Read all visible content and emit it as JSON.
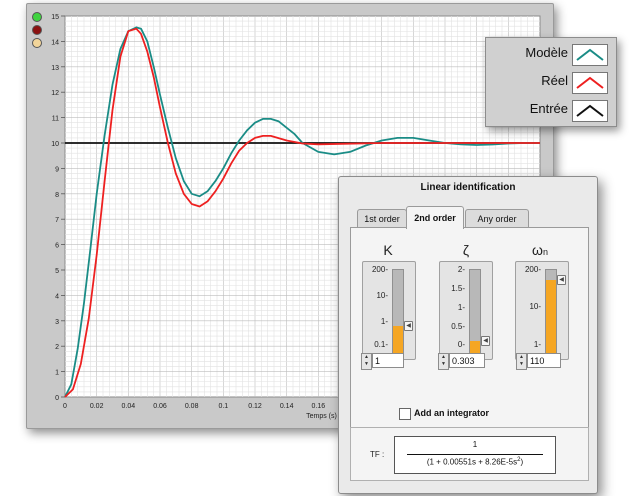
{
  "chart_data": {
    "type": "line",
    "xlabel": "Temps (s)",
    "xlim": [
      0,
      0.3
    ],
    "ylim": [
      0,
      15
    ],
    "x_ticks": [
      "0",
      "0.02",
      "0.04",
      "0.06",
      "0.08",
      "0.1",
      "0.12",
      "0.14",
      "0.16"
    ],
    "y_ticks": [
      "0",
      "1",
      "2",
      "3",
      "4",
      "5",
      "6",
      "7",
      "8",
      "9",
      "10",
      "11",
      "12",
      "13",
      "14",
      "15"
    ],
    "grid": true,
    "legend_position": "top-right",
    "series": [
      {
        "name": "Modèle",
        "color": "#1a8c86",
        "x": [
          0,
          0.004,
          0.008,
          0.012,
          0.016,
          0.02,
          0.025,
          0.03,
          0.035,
          0.04,
          0.045,
          0.048,
          0.052,
          0.056,
          0.06,
          0.065,
          0.07,
          0.075,
          0.08,
          0.085,
          0.09,
          0.095,
          0.1,
          0.105,
          0.11,
          0.115,
          0.12,
          0.125,
          0.13,
          0.135,
          0.14,
          0.145,
          0.15,
          0.16,
          0.17,
          0.18,
          0.19,
          0.2,
          0.21,
          0.22,
          0.23,
          0.24,
          0.25,
          0.26,
          0.27,
          0.28,
          0.29,
          0.3
        ],
        "y": [
          0,
          0.5,
          1.9,
          3.7,
          5.8,
          8.0,
          10.3,
          12.3,
          13.7,
          14.4,
          14.55,
          14.5,
          14.0,
          13.0,
          11.9,
          10.6,
          9.4,
          8.5,
          8.0,
          7.9,
          8.1,
          8.5,
          9.0,
          9.6,
          10.1,
          10.5,
          10.8,
          10.95,
          10.95,
          10.85,
          10.6,
          10.35,
          10.0,
          9.65,
          9.55,
          9.65,
          9.9,
          10.1,
          10.2,
          10.2,
          10.1,
          10.0,
          9.95,
          9.92,
          9.94,
          9.98,
          10.0,
          10.0
        ]
      },
      {
        "name": "Réel",
        "color": "#ee2020",
        "x": [
          0,
          0.005,
          0.01,
          0.015,
          0.02,
          0.025,
          0.03,
          0.035,
          0.04,
          0.045,
          0.048,
          0.052,
          0.056,
          0.06,
          0.065,
          0.07,
          0.075,
          0.08,
          0.085,
          0.09,
          0.095,
          0.1,
          0.105,
          0.11,
          0.115,
          0.12,
          0.125,
          0.13,
          0.14,
          0.15,
          0.16,
          0.2,
          0.25,
          0.3
        ],
        "y": [
          0,
          0.3,
          1.3,
          3.1,
          5.6,
          8.5,
          11.3,
          13.4,
          14.4,
          14.5,
          14.3,
          13.6,
          12.6,
          11.4,
          10.0,
          8.8,
          8.0,
          7.6,
          7.5,
          7.7,
          8.1,
          8.6,
          9.2,
          9.7,
          10.0,
          10.2,
          10.28,
          10.28,
          10.1,
          9.98,
          9.95,
          10.0,
          10.0,
          10.0
        ]
      },
      {
        "name": "Entrée",
        "color": "#111111",
        "x": [
          0,
          0.3
        ],
        "y": [
          10,
          10
        ]
      }
    ]
  },
  "legend": {
    "items": [
      {
        "label": "Modèle",
        "color": "#1a8c86"
      },
      {
        "label": "Réel",
        "color": "#ee2020"
      },
      {
        "label": "Entrée",
        "color": "#111111"
      }
    ]
  },
  "panel": {
    "title": "Linear identification",
    "tabs": [
      "1st order",
      "2nd order",
      "Any order"
    ],
    "active_tab": "2nd order",
    "accent_color": "#f5a623",
    "params": [
      {
        "symbol": "K",
        "ticks": [
          "200-",
          "10-",
          "1-",
          "0.1-"
        ],
        "value": "1",
        "level": 0.33
      },
      {
        "symbol": "ζ",
        "ticks": [
          "2-",
          "1.5-",
          "1-",
          "0.5-",
          "0-"
        ],
        "value": "0.303",
        "level": 0.15
      },
      {
        "symbol": "ω",
        "symbol_sub": "n",
        "ticks": [
          "200-",
          "10-",
          "1-"
        ],
        "value": "110",
        "level": 0.88
      }
    ],
    "integrator_label": "Add an integrator",
    "integrator_checked": false,
    "tf_label": "TF :",
    "tf_numerator": "1",
    "tf_denominator_prefix": "(1 + 0.00551s + 8.26E-5s",
    "tf_denominator_exp": "2",
    "tf_denominator_suffix": ")"
  }
}
